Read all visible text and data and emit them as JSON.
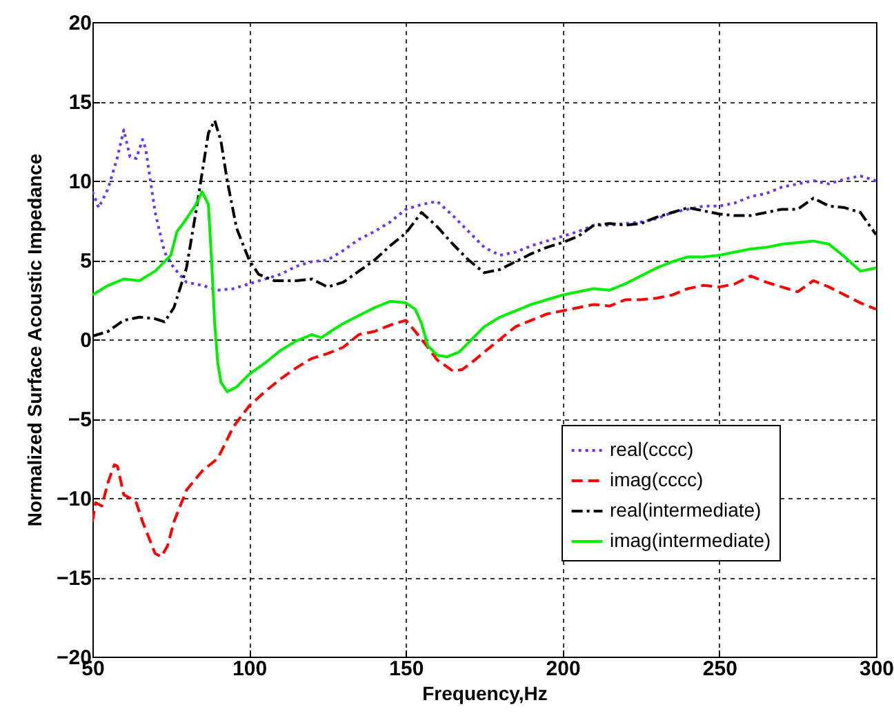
{
  "chart_data": {
    "type": "line",
    "xlabel": "Frequency,Hz",
    "ylabel": "Normalized Surface Acoustic Impedance",
    "xlim": [
      50,
      300
    ],
    "xticks": [
      50,
      100,
      150,
      200,
      250,
      300
    ],
    "ylim": [
      -20,
      20
    ],
    "yticks": [
      -20,
      -15,
      -10,
      -5,
      0,
      5,
      10,
      15,
      20
    ],
    "grid": true,
    "legend": "bottom right",
    "series": [
      {
        "name": "real(cccc)",
        "color": "#6633ff",
        "line_style": "dotted",
        "x": [
          50,
          52,
          55,
          58,
          60,
          62,
          64,
          66,
          67,
          70,
          73,
          76,
          80,
          85,
          90,
          95,
          100,
          105,
          110,
          115,
          120,
          125,
          130,
          135,
          140,
          145,
          150,
          155,
          160,
          165,
          170,
          175,
          180,
          185,
          190,
          195,
          200,
          205,
          210,
          215,
          220,
          225,
          230,
          235,
          240,
          245,
          250,
          255,
          260,
          265,
          270,
          275,
          280,
          285,
          290,
          295,
          300
        ],
        "values": [
          9.3,
          8.3,
          9.5,
          11.5,
          13.2,
          11.5,
          11.4,
          12.6,
          12,
          8,
          5.5,
          4.5,
          3.6,
          3.4,
          3.1,
          3.2,
          3.5,
          3.8,
          4.1,
          4.6,
          4.9,
          5,
          5.6,
          6.3,
          6.8,
          7.4,
          8.2,
          8.5,
          8.7,
          7.8,
          6.8,
          5.8,
          5.3,
          5.5,
          5.9,
          6.2,
          6.5,
          6.8,
          7.2,
          7.2,
          7.3,
          7.4,
          7.6,
          8,
          8.2,
          8.4,
          8.4,
          8.6,
          9,
          9.2,
          9.6,
          9.8,
          10,
          9.8,
          10.1,
          10.3,
          10
        ]
      },
      {
        "name": "imag(cccc)",
        "color": "#ff0000",
        "line_style": "dashed",
        "x": [
          50,
          51,
          53,
          55,
          57,
          58,
          60,
          62,
          64,
          66,
          68,
          70,
          72,
          74,
          76,
          78,
          80,
          85,
          90,
          95,
          100,
          105,
          110,
          115,
          120,
          125,
          130,
          135,
          140,
          145,
          150,
          153,
          157,
          160,
          165,
          168,
          172,
          175,
          180,
          185,
          190,
          195,
          200,
          205,
          210,
          215,
          220,
          225,
          230,
          235,
          240,
          245,
          250,
          255,
          260,
          265,
          270,
          275,
          280,
          285,
          290,
          295,
          300
        ],
        "values": [
          -11.5,
          -10.3,
          -10.5,
          -9,
          -7.9,
          -8,
          -9.8,
          -10,
          -10.3,
          -11.5,
          -12.5,
          -13.5,
          -13.7,
          -13,
          -11.5,
          -10.5,
          -9.5,
          -8.3,
          -7.5,
          -5.5,
          -4.2,
          -3.3,
          -2.5,
          -1.8,
          -1.2,
          -0.9,
          -0.5,
          0.3,
          0.5,
          0.9,
          1.2,
          0.5,
          -0.5,
          -1.3,
          -2,
          -1.9,
          -1.3,
          -0.8,
          0,
          0.8,
          1.2,
          1.6,
          1.8,
          2,
          2.2,
          2.1,
          2.5,
          2.5,
          2.6,
          2.8,
          3.2,
          3.4,
          3.3,
          3.5,
          4,
          3.6,
          3.3,
          3,
          3.7,
          3.3,
          2.8,
          2.3,
          1.9
        ]
      },
      {
        "name": "real(intermediate)",
        "color": "#000000",
        "line_style": "dashdot",
        "x": [
          50,
          55,
          60,
          65,
          70,
          73,
          76,
          80,
          83,
          85,
          87,
          89,
          91,
          93,
          96,
          100,
          103,
          108,
          115,
          120,
          125,
          130,
          135,
          140,
          145,
          150,
          155,
          160,
          165,
          170,
          175,
          180,
          185,
          190,
          195,
          200,
          205,
          210,
          215,
          220,
          225,
          230,
          235,
          240,
          245,
          250,
          255,
          260,
          265,
          270,
          275,
          280,
          285,
          290,
          295,
          300
        ],
        "values": [
          0.2,
          0.5,
          1.2,
          1.4,
          1.3,
          1.1,
          2,
          4.5,
          8,
          10.5,
          13,
          13.8,
          12.5,
          10,
          7,
          5,
          4.1,
          3.7,
          3.7,
          3.8,
          3.3,
          3.6,
          4.3,
          5,
          5.9,
          6.7,
          8,
          7.1,
          6,
          5,
          4.2,
          4.4,
          4.9,
          5.4,
          5.8,
          6.1,
          6.5,
          7.2,
          7.3,
          7.2,
          7.3,
          7.7,
          8,
          8.3,
          8.1,
          7.9,
          7.8,
          7.8,
          8,
          8.2,
          8.2,
          8.9,
          8.4,
          8.3,
          8,
          6.6
        ]
      },
      {
        "name": "imag(intermediate)",
        "color": "#00ee00",
        "line_style": "solid",
        "x": [
          50,
          55,
          60,
          65,
          70,
          75,
          77,
          80,
          83,
          85,
          87,
          88,
          89,
          90,
          91,
          93,
          96,
          100,
          105,
          110,
          115,
          120,
          123,
          126,
          130,
          135,
          140,
          145,
          150,
          153,
          155,
          157,
          160,
          163,
          167,
          170,
          175,
          180,
          185,
          190,
          195,
          200,
          205,
          210,
          215,
          220,
          225,
          230,
          235,
          240,
          245,
          250,
          255,
          260,
          265,
          270,
          275,
          280,
          285,
          290,
          295,
          300
        ],
        "values": [
          2.8,
          3.4,
          3.8,
          3.7,
          4.3,
          5.3,
          6.8,
          7.6,
          8.5,
          9.3,
          8.5,
          5,
          1,
          -1.5,
          -2.7,
          -3.3,
          -3,
          -2.2,
          -1.5,
          -0.7,
          -0.1,
          0.3,
          0.1,
          0.5,
          1,
          1.5,
          2,
          2.4,
          2.3,
          1.9,
          1,
          -0.4,
          -1,
          -1.1,
          -0.8,
          -0.2,
          0.8,
          1.4,
          1.8,
          2.2,
          2.5,
          2.8,
          3,
          3.2,
          3.1,
          3.5,
          4,
          4.5,
          4.9,
          5.2,
          5.2,
          5.3,
          5.5,
          5.7,
          5.8,
          6,
          6.1,
          6.2,
          6,
          5.2,
          4.3,
          4.5
        ]
      }
    ]
  }
}
